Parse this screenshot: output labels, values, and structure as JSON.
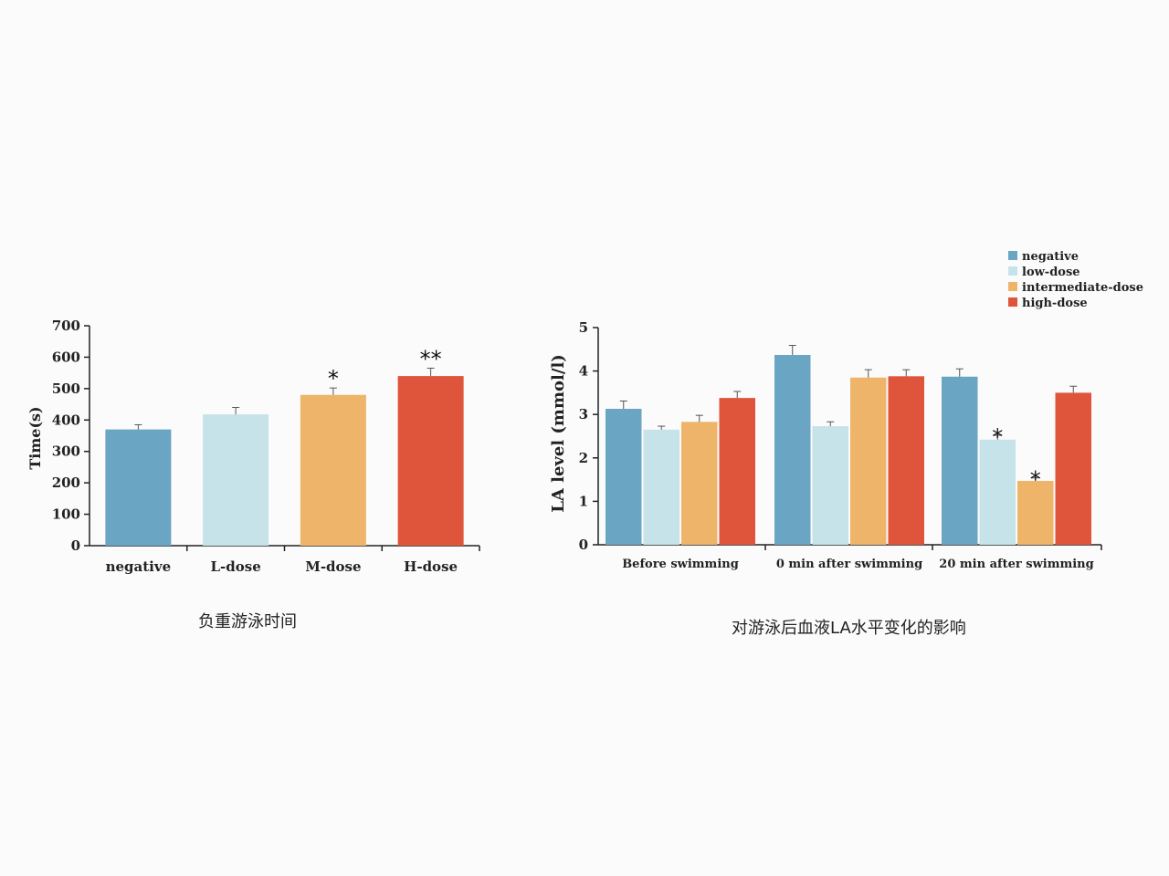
{
  "chart_data": [
    {
      "type": "bar",
      "categories": [
        "negative",
        "L-dose",
        "M-dose",
        "H-dose"
      ],
      "values": [
        370,
        418,
        480,
        540
      ],
      "errors": [
        15,
        22,
        22,
        25
      ],
      "significance": [
        "",
        "",
        "*",
        "**"
      ],
      "colors": [
        "#6ba5c4",
        "#c5e3e8",
        "#eeb46a",
        "#df553c"
      ],
      "ylabel": "Time(s)",
      "xlabel": "",
      "ylim": [
        0,
        700
      ],
      "yticks": [
        0,
        100,
        200,
        300,
        400,
        500,
        600,
        700
      ],
      "caption": "负重游泳时间",
      "grid": false
    },
    {
      "type": "bar",
      "categories": [
        "Before swimming",
        "0 min after swimming",
        "20 min after swimming"
      ],
      "series": [
        {
          "name": "negative",
          "color": "#6ba5c4",
          "values": [
            3.13,
            4.37,
            3.87
          ],
          "errors": [
            0.18,
            0.22,
            0.18
          ],
          "significance": [
            "",
            "",
            ""
          ]
        },
        {
          "name": "low-dose",
          "color": "#c5e3e8",
          "values": [
            2.65,
            2.73,
            2.42
          ],
          "errors": [
            0.08,
            0.1,
            0.1
          ],
          "significance": [
            "",
            "",
            "*"
          ]
        },
        {
          "name": "intermediate-dose",
          "color": "#eeb46a",
          "values": [
            2.83,
            3.85,
            1.47
          ],
          "errors": [
            0.15,
            0.18,
            0.07
          ],
          "significance": [
            "",
            "",
            "*"
          ]
        },
        {
          "name": "high-dose",
          "color": "#df553c",
          "values": [
            3.38,
            3.88,
            3.5
          ],
          "errors": [
            0.15,
            0.15,
            0.15
          ],
          "significance": [
            "",
            "",
            ""
          ]
        }
      ],
      "ylabel": "LA level (mmol/l)",
      "xlabel": "",
      "ylim": [
        0,
        5
      ],
      "yticks": [
        0,
        1,
        2,
        3,
        4,
        5
      ],
      "legend_position": "top-right",
      "caption": "对游泳后血液LA水平变化的影响",
      "grid": false
    }
  ]
}
